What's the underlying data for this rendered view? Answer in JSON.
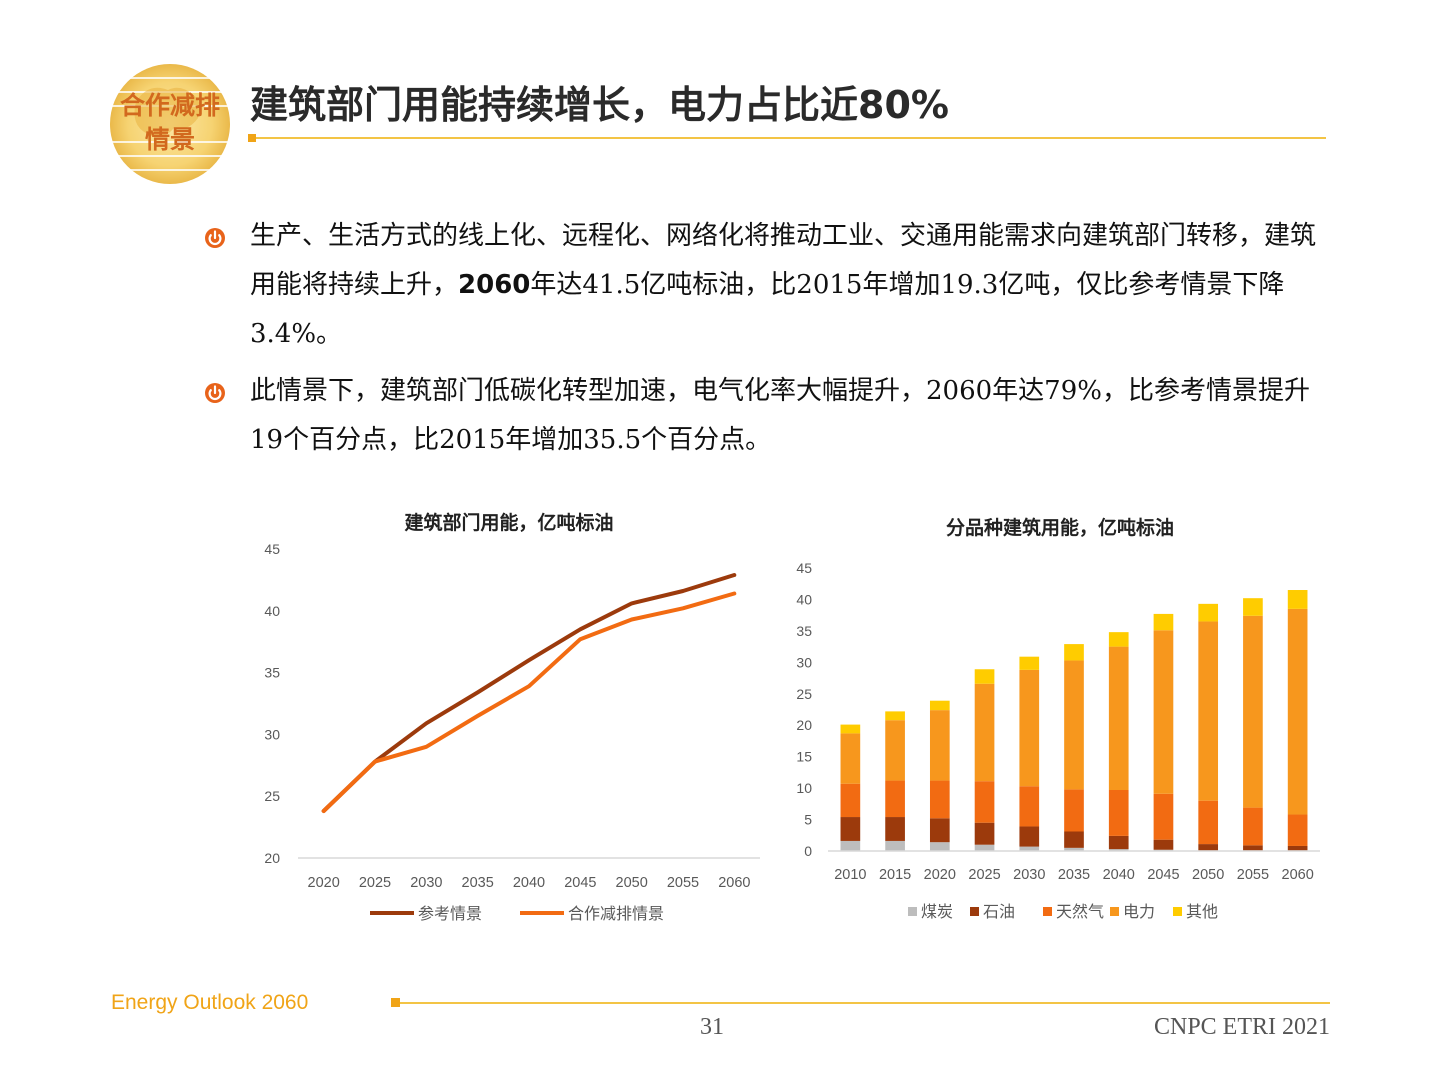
{
  "header": {
    "logo_text_line1": "合作减排",
    "logo_text_line2": "情景",
    "title": "建筑部门用能持续增长，电力占比近80%"
  },
  "bullets": [
    {
      "parts": [
        "生产、生活方式的线上化、远程化、网络化将推动工业、交通用能需求向建筑部门转移，建筑用能将持续上升，",
        "2060",
        "年达41.5亿吨标油，比2015年增加19.3亿吨，仅比参考情景下降3.4%。"
      ]
    },
    {
      "parts": [
        "此情景下，建筑部门低碳化转型加速，电气化率大幅提升，2060年达79%，比参考情景提升19个百分点，比2015年增加35.5个百分点。"
      ]
    }
  ],
  "chart_data": [
    {
      "type": "line",
      "title": "建筑部门用能，亿吨标油",
      "x": [
        "2020",
        "2025",
        "2030",
        "2035",
        "2040",
        "2045",
        "2050",
        "2055",
        "2060"
      ],
      "ylim": [
        20,
        45
      ],
      "yticks": [
        20,
        25,
        30,
        35,
        40,
        45
      ],
      "grid": false,
      "legend_position": "bottom",
      "series": [
        {
          "name": "参考情景",
          "color": "#9c3a0c",
          "values": [
            23.8,
            27.8,
            30.9,
            33.4,
            36.0,
            38.5,
            40.6,
            41.6,
            42.9
          ]
        },
        {
          "name": "合作减排情景",
          "color": "#f26b12",
          "values": [
            23.8,
            27.8,
            29.0,
            31.5,
            33.9,
            37.7,
            39.3,
            40.2,
            41.4
          ]
        }
      ]
    },
    {
      "type": "bar",
      "stacked": true,
      "title": "分品种建筑用能，亿吨标油",
      "categories": [
        "2010",
        "2015",
        "2020",
        "2025",
        "2030",
        "2035",
        "2040",
        "2045",
        "2050",
        "2055",
        "2060"
      ],
      "ylim": [
        0,
        45
      ],
      "yticks": [
        0,
        5,
        10,
        15,
        20,
        25,
        30,
        35,
        40,
        45
      ],
      "grid": false,
      "legend_position": "bottom",
      "series": [
        {
          "name": "煤炭",
          "color": "#bdbdbd",
          "values": [
            1.6,
            1.6,
            1.4,
            1.0,
            0.7,
            0.5,
            0.3,
            0.2,
            0.1,
            0.1,
            0.1
          ]
        },
        {
          "name": "石油",
          "color": "#9c3a0c",
          "values": [
            3.8,
            3.8,
            3.8,
            3.5,
            3.2,
            2.6,
            2.1,
            1.6,
            1.0,
            0.8,
            0.7
          ]
        },
        {
          "name": "天然气",
          "color": "#f26b12",
          "values": [
            5.3,
            5.8,
            6.0,
            6.6,
            6.4,
            6.7,
            7.3,
            7.3,
            6.9,
            6.0,
            5.0
          ]
        },
        {
          "name": "电力",
          "color": "#f7971d",
          "values": [
            8.0,
            9.6,
            11.2,
            15.5,
            18.5,
            20.5,
            22.8,
            26.0,
            28.5,
            30.5,
            32.7
          ]
        },
        {
          "name": "其他",
          "color": "#ffcc00",
          "values": [
            1.4,
            1.4,
            1.5,
            2.3,
            2.1,
            2.6,
            2.3,
            2.6,
            2.8,
            2.8,
            3.0
          ]
        }
      ]
    }
  ],
  "footer": {
    "left": "Energy Outlook 2060",
    "page": "31",
    "org": "CNPC ETRI 2021"
  }
}
